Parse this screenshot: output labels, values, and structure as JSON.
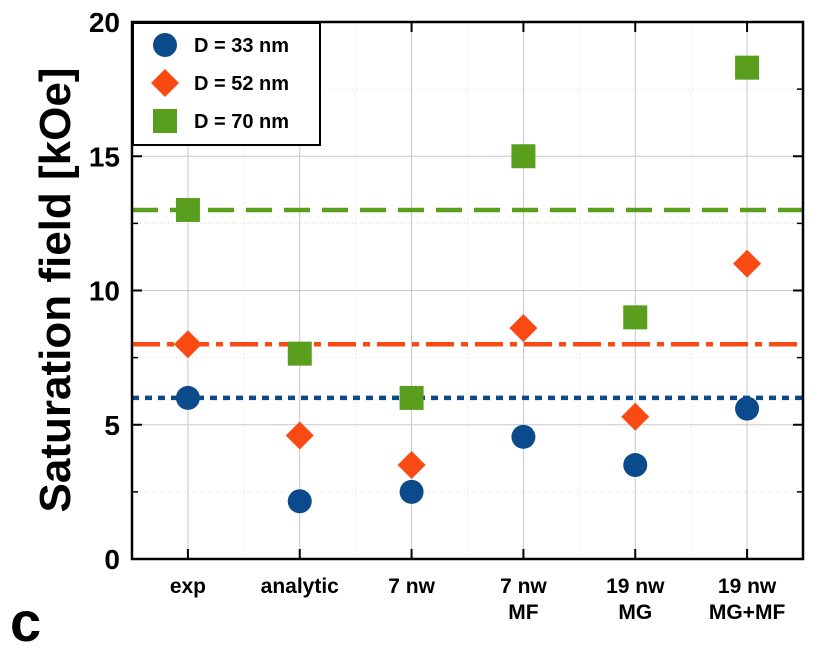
{
  "panel_label": "c",
  "chart_data": {
    "type": "scatter",
    "title": "",
    "xlabel": "",
    "ylabel": "Saturation field [kOe]",
    "ylim": [
      0,
      20
    ],
    "yticks": [
      "0",
      "5",
      "10",
      "15",
      "20"
    ],
    "categories": [
      [
        "exp"
      ],
      [
        "analytic"
      ],
      [
        "7 nw"
      ],
      [
        "7 nw",
        "MF"
      ],
      [
        "19 nw",
        "MG"
      ],
      [
        "19 nw",
        "MG+MF"
      ]
    ],
    "grid": true,
    "legend_position": "top-left",
    "series": [
      {
        "name": "D = 33 nm",
        "marker": "circle",
        "color": "#0b4a8b",
        "values": [
          6.0,
          2.15,
          2.5,
          4.55,
          3.5,
          5.6
        ]
      },
      {
        "name": "D = 52 nm",
        "marker": "diamond",
        "color": "#fa4a14",
        "values": [
          8.0,
          4.6,
          3.5,
          8.6,
          5.3,
          11.0
        ]
      },
      {
        "name": "D = 70 nm",
        "marker": "square",
        "color": "#5a9e1e",
        "values": [
          13.0,
          7.65,
          6.0,
          15.0,
          9.0,
          18.3
        ]
      }
    ],
    "reference_lines": [
      {
        "name": "D = 33 nm reference",
        "value": 6.0,
        "color": "#0b4a8b",
        "style": "dotted"
      },
      {
        "name": "D = 52 nm reference",
        "value": 8.0,
        "color": "#fa4a14",
        "style": "dashdot"
      },
      {
        "name": "D = 70 nm reference",
        "value": 13.0,
        "color": "#5a9e1e",
        "style": "dashed"
      }
    ]
  }
}
